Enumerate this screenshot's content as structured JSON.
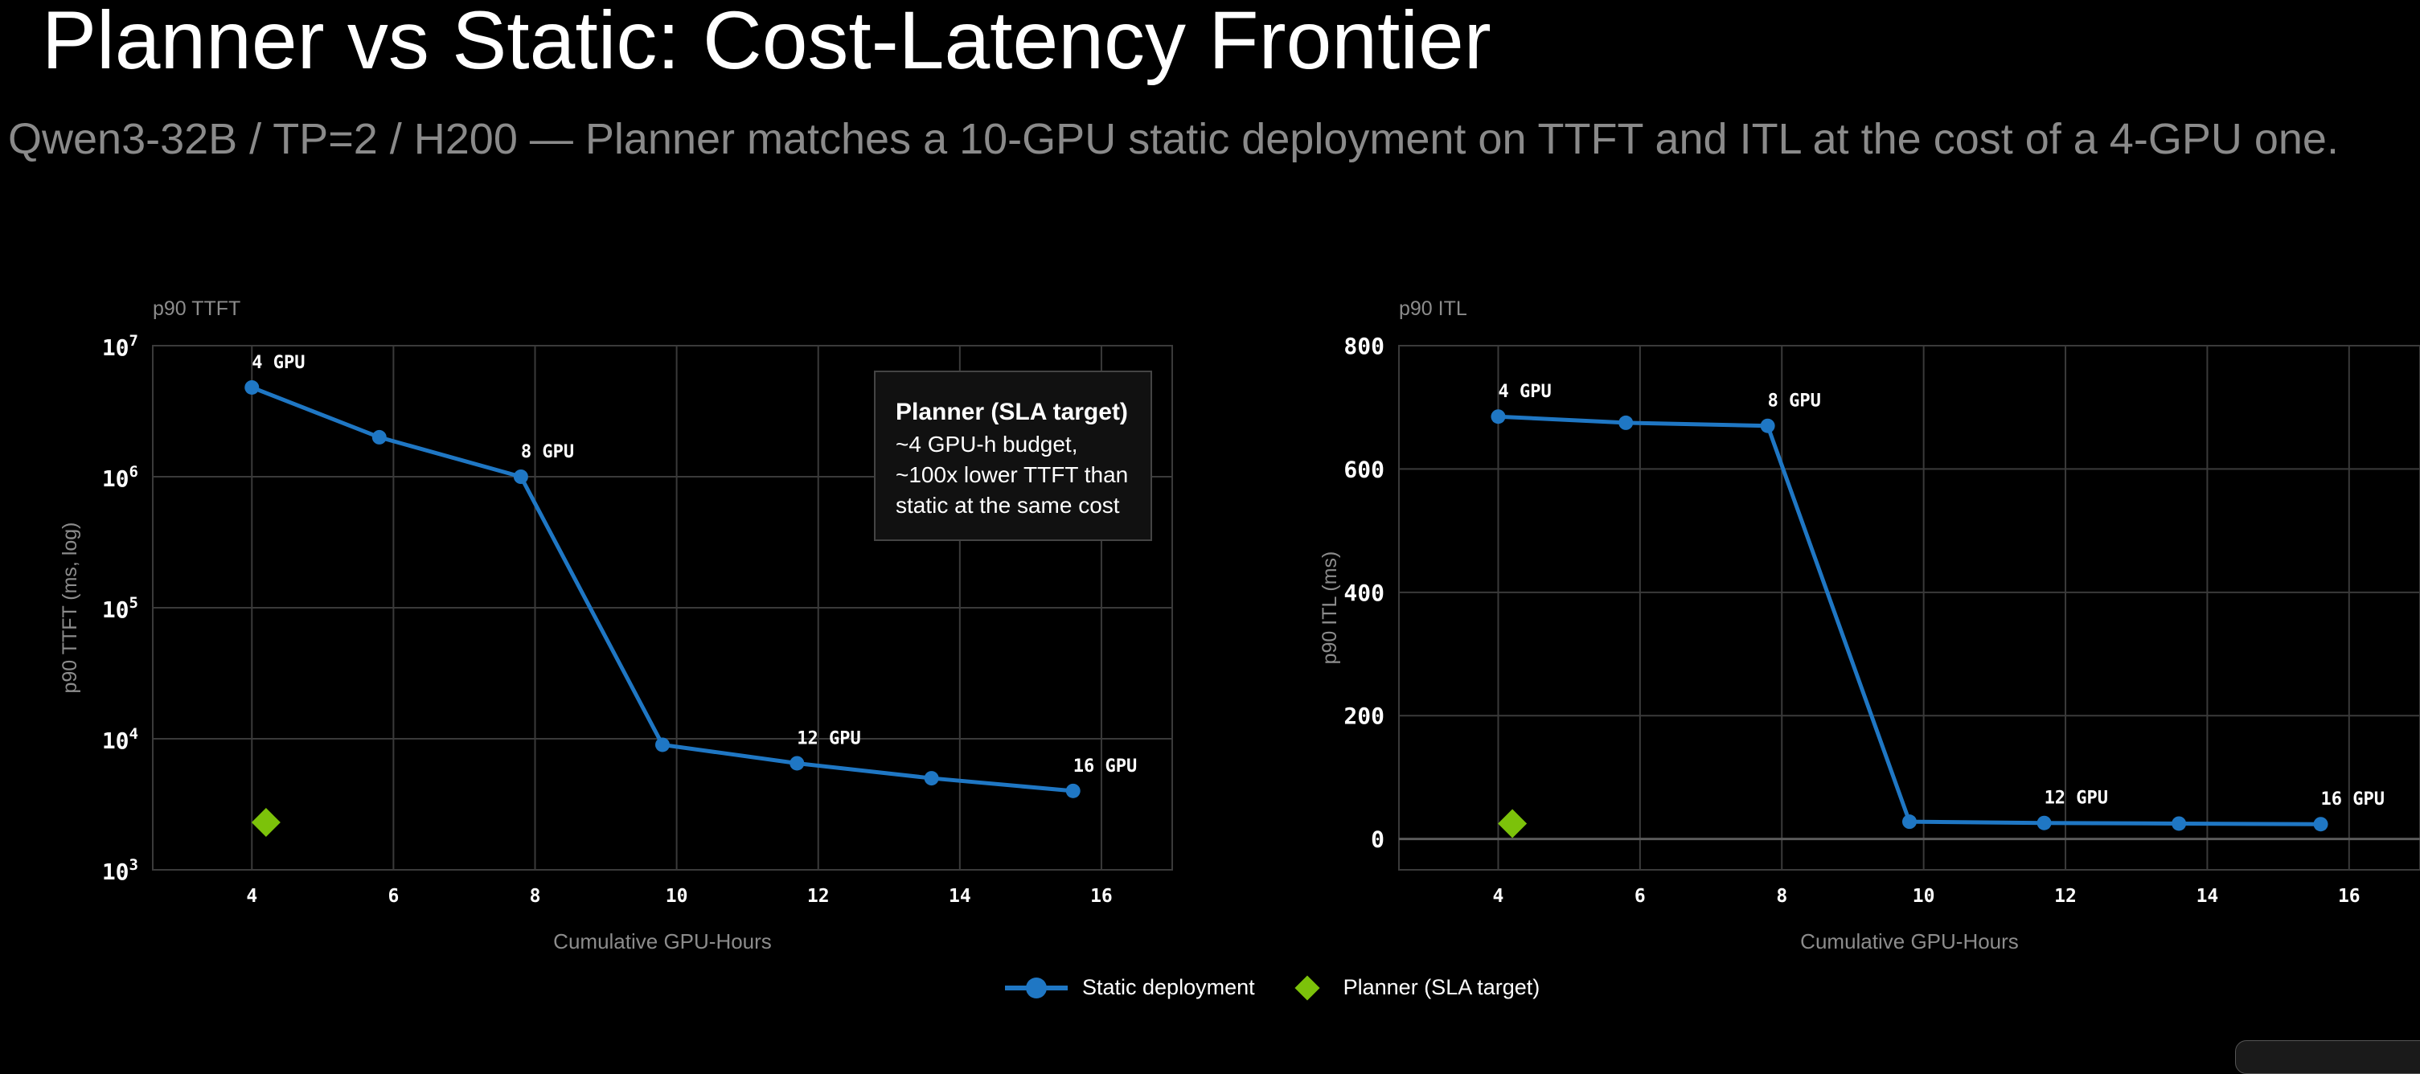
{
  "title": "Planner vs Static: Cost-Latency Frontier",
  "subtitle": "Qwen3-32B / TP=2 / H200 — Planner matches a 10-GPU static deployment on TTFT and ITL at the cost of a 4-GPU one.",
  "colors": {
    "static": "#1f77c4",
    "planner": "#7cc20a",
    "grid": "#3a3a3a",
    "axis_text": "#8c8c8c"
  },
  "legend": {
    "static_label": "Static deployment",
    "planner_label": "Planner (SLA target)"
  },
  "annotation": {
    "title": "Planner (SLA target)",
    "lines": [
      "~4 GPU-h budget,",
      "~100x lower TTFT than",
      "static at the same cost"
    ]
  },
  "chart_data": [
    {
      "type": "line",
      "panel_title": "p90 TTFT",
      "xlabel": "Cumulative GPU-Hours",
      "ylabel": "p90 TTFT (ms, log)",
      "ylog": true,
      "xlim": [
        2.6,
        17
      ],
      "ylim": [
        1000,
        10000000
      ],
      "xticks": [
        4,
        6,
        8,
        10,
        12,
        14,
        16
      ],
      "yticks": [
        {
          "value": 1000,
          "base": "10",
          "exp": "3"
        },
        {
          "value": 10000,
          "base": "10",
          "exp": "4"
        },
        {
          "value": 100000,
          "base": "10",
          "exp": "5"
        },
        {
          "value": 1000000,
          "base": "10",
          "exp": "6"
        },
        {
          "value": 10000000,
          "base": "10",
          "exp": "7"
        }
      ],
      "grid": true,
      "series": [
        {
          "name": "Static deployment",
          "x": [
            4.0,
            5.8,
            7.8,
            9.8,
            11.7,
            13.6,
            15.6
          ],
          "y": [
            4800000,
            2000000,
            1000000,
            9000,
            6500,
            5000,
            4000
          ]
        },
        {
          "name": "Planner (SLA target)",
          "x": [
            4.2
          ],
          "y": [
            2300
          ]
        }
      ],
      "point_labels": [
        {
          "text": "4 GPU",
          "x": 4.0,
          "y": 4800000
        },
        {
          "text": "8 GPU",
          "x": 7.8,
          "y": 1000000
        },
        {
          "text": "12 GPU",
          "x": 11.7,
          "y": 6500
        },
        {
          "text": "16 GPU",
          "x": 15.6,
          "y": 4000
        }
      ]
    },
    {
      "type": "line",
      "panel_title": "p90 ITL",
      "xlabel": "Cumulative GPU-Hours",
      "ylabel": "p90 ITL (ms)",
      "ylog": false,
      "xlim": [
        2.6,
        17
      ],
      "ylim": [
        -50,
        800
      ],
      "xticks": [
        4,
        6,
        8,
        10,
        12,
        14,
        16
      ],
      "yticks": [
        {
          "value": 0,
          "label": "0"
        },
        {
          "value": 200,
          "label": "200"
        },
        {
          "value": 400,
          "label": "400"
        },
        {
          "value": 600,
          "label": "600"
        },
        {
          "value": 800,
          "label": "800"
        }
      ],
      "grid": true,
      "series": [
        {
          "name": "Static deployment",
          "x": [
            4.0,
            5.8,
            7.8,
            9.8,
            11.7,
            13.6,
            15.6
          ],
          "y": [
            685,
            675,
            670,
            28,
            26,
            25,
            24
          ]
        },
        {
          "name": "Planner (SLA target)",
          "x": [
            4.2
          ],
          "y": [
            25
          ]
        }
      ],
      "point_labels": [
        {
          "text": "4 GPU",
          "x": 4.0,
          "y": 685
        },
        {
          "text": "8 GPU",
          "x": 7.8,
          "y": 670
        },
        {
          "text": "12 GPU",
          "x": 11.7,
          "y": 26
        },
        {
          "text": "16 GPU",
          "x": 15.6,
          "y": 24
        }
      ]
    }
  ]
}
